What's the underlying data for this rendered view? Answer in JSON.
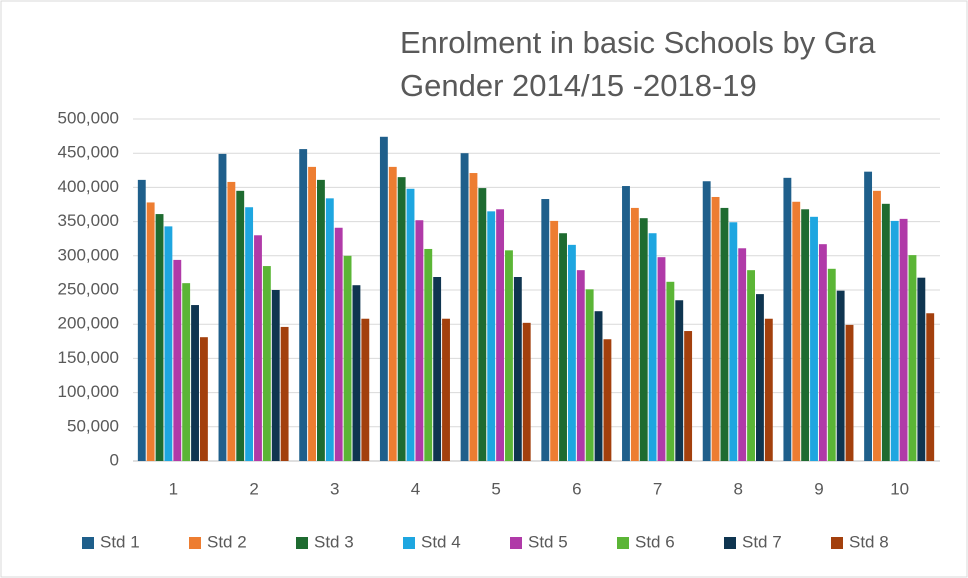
{
  "chart_data": {
    "type": "bar",
    "title": [
      "Enrolment in basic Schools by Gra",
      "Gender 2014/15 -2018-19"
    ],
    "categories": [
      "1",
      "2",
      "3",
      "4",
      "5",
      "6",
      "7",
      "8",
      "9",
      "10"
    ],
    "series": [
      {
        "name": "Std 1",
        "color": "#1f5f8b",
        "values": [
          411000,
          449000,
          456000,
          474000,
          450000,
          383000,
          402000,
          409000,
          414000,
          423000
        ]
      },
      {
        "name": "Std 2",
        "color": "#ed7d31",
        "values": [
          378000,
          408000,
          430000,
          430000,
          421000,
          351000,
          370000,
          386000,
          379000,
          395000
        ]
      },
      {
        "name": "Std 3",
        "color": "#1e6b30",
        "values": [
          361000,
          395000,
          411000,
          415000,
          399000,
          333000,
          355000,
          370000,
          368000,
          376000
        ]
      },
      {
        "name": "Std 4",
        "color": "#1ea6e0",
        "values": [
          343000,
          371000,
          384000,
          398000,
          365000,
          316000,
          333000,
          349000,
          357000,
          351000
        ]
      },
      {
        "name": "Std 5",
        "color": "#b03aa8",
        "values": [
          294000,
          330000,
          341000,
          352000,
          368000,
          279000,
          298000,
          311000,
          317000,
          354000
        ]
      },
      {
        "name": "Std 6",
        "color": "#5bb536",
        "values": [
          260000,
          285000,
          300000,
          310000,
          308000,
          251000,
          262000,
          279000,
          281000,
          301000
        ]
      },
      {
        "name": "Std 7",
        "color": "#0f3550",
        "values": [
          228000,
          250000,
          257000,
          269000,
          269000,
          219000,
          235000,
          244000,
          249000,
          268000
        ]
      },
      {
        "name": "Std 8",
        "color": "#a3400d",
        "values": [
          181000,
          196000,
          208000,
          208000,
          202000,
          178000,
          190000,
          208000,
          199000,
          216000
        ]
      }
    ],
    "ylim": [
      0,
      500000
    ],
    "yticks": [
      0,
      {
        "value": 50000,
        "label": "50,000"
      },
      {
        "value": 100000,
        "label": "100,000"
      },
      {
        "value": 150000,
        "label": "150,000"
      },
      {
        "value": 200000,
        "label": "200,000"
      },
      {
        "value": 250000,
        "label": "250,000"
      },
      {
        "value": 300000,
        "label": "300,000"
      },
      {
        "value": 350000,
        "label": "350,000"
      },
      {
        "value": 400000,
        "label": "400,000"
      },
      {
        "value": 450000,
        "label": "450,000"
      },
      {
        "value": 500000,
        "label": "500,000"
      }
    ],
    "grid": true,
    "legend": "bottom"
  }
}
